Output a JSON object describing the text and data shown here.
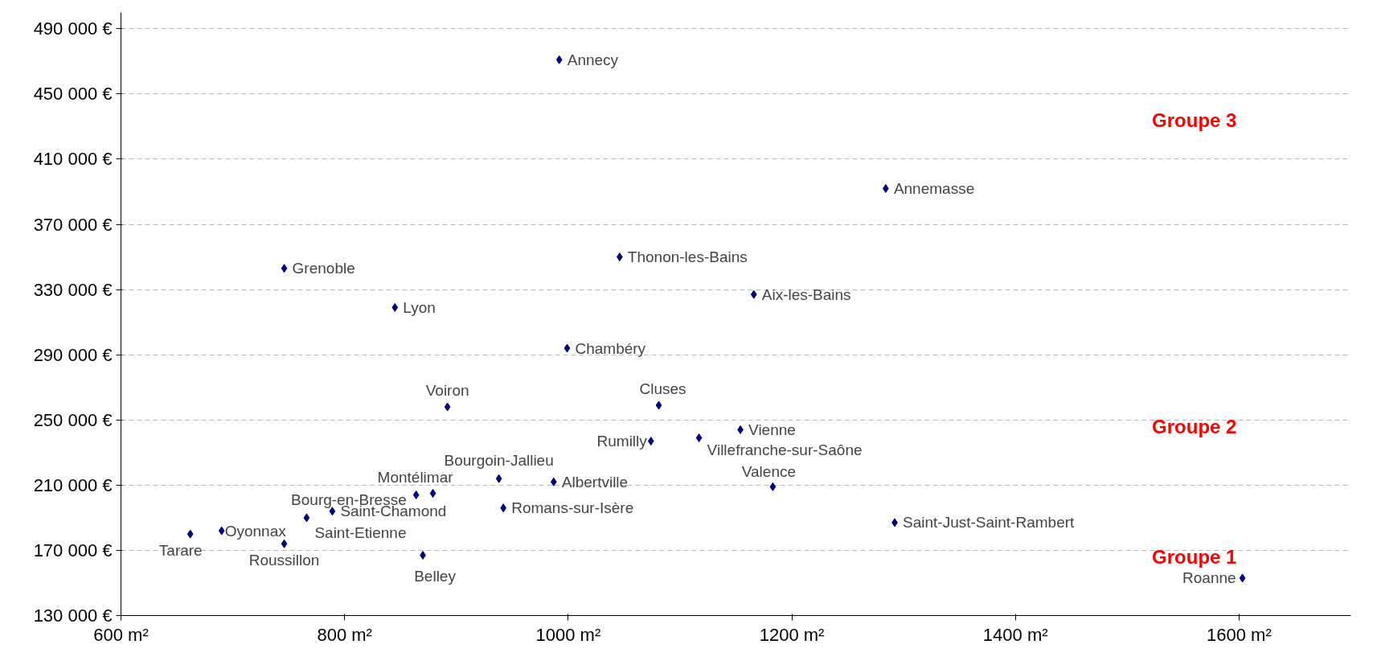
{
  "chart_data": {
    "type": "scatter",
    "marker": "diamond",
    "grid": "y",
    "x": [
      992,
      1284,
      746,
      1046,
      1166,
      845,
      999,
      892,
      1081,
      1154,
      1074,
      1117,
      938,
      987,
      1183,
      864,
      879,
      942,
      789,
      766,
      690,
      662,
      746,
      870,
      1292,
      1603
    ],
    "values": [
      471000,
      392000,
      343000,
      350000,
      327000,
      319000,
      294000,
      258000,
      259000,
      244000,
      237000,
      239000,
      214000,
      212000,
      209000,
      204000,
      205000,
      196000,
      194000,
      190000,
      182000,
      180000,
      174000,
      167000,
      187000,
      153000
    ],
    "value_labels": [
      "Annecy",
      "Annemasse",
      "Grenoble",
      "Thonon-les-Bains",
      "Aix-les-Bains",
      "Lyon",
      "Chambéry",
      "Voiron",
      "Cluses",
      "Vienne",
      "Rumilly",
      "Villefranche-sur-Saône",
      "Bourgoin-Jallieu",
      "Albertville",
      "Valence",
      "Bourg-en-Bresse",
      "Montélimar",
      "Romans-sur-Isère",
      "Saint-Chamond",
      "Saint-Etienne",
      "Oyonnax",
      "Tarare",
      "Roussillon",
      "Belley",
      "Saint-Just-Saint-Rambert",
      "Roanne"
    ],
    "color": "#000080",
    "xlim": [
      600,
      1700
    ],
    "ylim": [
      130000,
      500000
    ],
    "xticks": [
      {
        "value": 600,
        "label": "600 m²"
      },
      {
        "value": 800,
        "label": "800 m²"
      },
      {
        "value": 1000,
        "label": "1000 m²"
      },
      {
        "value": 1200,
        "label": "1200 m²"
      },
      {
        "value": 1400,
        "label": "1400 m²"
      },
      {
        "value": 1600,
        "label": "1600 m²"
      }
    ],
    "yticks": [
      {
        "value": 130000,
        "label": "130 000 €"
      },
      {
        "value": 170000,
        "label": "170 000 €"
      },
      {
        "value": 210000,
        "label": "210 000 €"
      },
      {
        "value": 250000,
        "label": "250 000 €"
      },
      {
        "value": 290000,
        "label": "290 000 €"
      },
      {
        "value": 330000,
        "label": "330 000 €"
      },
      {
        "value": 370000,
        "label": "370 000 €"
      },
      {
        "value": 410000,
        "label": "410 000 €"
      },
      {
        "value": 450000,
        "label": "450 000 €"
      },
      {
        "value": 490000,
        "label": "490 000 €"
      }
    ],
    "annotations": [
      "Groupe 3",
      "Groupe 2",
      "Groupe 1"
    ]
  }
}
